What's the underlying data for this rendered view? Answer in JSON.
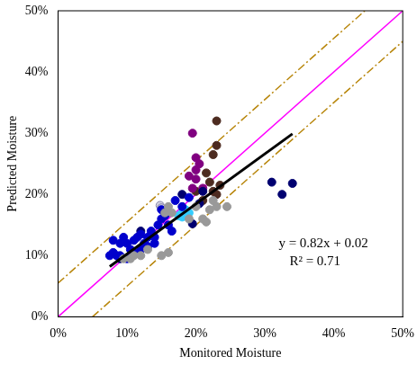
{
  "chart_data": {
    "type": "scatter",
    "x_label": "Monitored Moisture",
    "y_label": "Predicted Moisture",
    "xlim": [
      0,
      50
    ],
    "ylim": [
      0,
      50
    ],
    "xticks": [
      {
        "value": 0,
        "label": "0%"
      },
      {
        "value": 10,
        "label": "10%"
      },
      {
        "value": 20,
        "label": "20%"
      },
      {
        "value": 30,
        "label": "30%"
      },
      {
        "value": 40,
        "label": "40%"
      },
      {
        "value": 50,
        "label": "50%"
      }
    ],
    "yticks": [
      {
        "value": 0,
        "label": "0%"
      },
      {
        "value": 10,
        "label": "10%"
      },
      {
        "value": 20,
        "label": "20%"
      },
      {
        "value": 30,
        "label": "30%"
      },
      {
        "value": 40,
        "label": "40%"
      },
      {
        "value": 50,
        "label": "50%"
      }
    ],
    "grid": false,
    "annotations": [
      "y = 0.82x + 0.02",
      "R² = 0.71"
    ],
    "series": [
      {
        "type": "line",
        "color": "#ff00ff",
        "line_style": "solid",
        "x": [
          0,
          50
        ],
        "values": [
          0,
          50
        ]
      },
      {
        "type": "line",
        "color": "#b8860b",
        "line_style": "dashdot",
        "x": [
          0,
          44.5
        ],
        "values": [
          5.5,
          50
        ]
      },
      {
        "type": "line",
        "color": "#b8860b",
        "line_style": "dashdot",
        "x": [
          5,
          50
        ],
        "values": [
          0,
          45
        ]
      },
      {
        "type": "scatter",
        "marker": "circle",
        "color": "#999999",
        "x": [
          9.5,
          10.5,
          11,
          12,
          13,
          15.5,
          16,
          16.5,
          19,
          20,
          21,
          21.5,
          22,
          22.5,
          23,
          24.5,
          16,
          15
        ],
        "values": [
          9.5,
          9.5,
          10,
          10,
          11,
          17,
          18,
          17,
          16,
          18,
          16,
          15.5,
          17.5,
          19,
          18,
          18,
          10.5,
          10
        ]
      },
      {
        "type": "scatter",
        "marker": "circle",
        "color": "#0000cc",
        "x": [
          7.5,
          8,
          8.5,
          9,
          9,
          9.5,
          10,
          10.5,
          11,
          11.5,
          12,
          12,
          12.5,
          13,
          13.5,
          14,
          14.5,
          15,
          15,
          15.5,
          16,
          17,
          18,
          19,
          10,
          11,
          13,
          14,
          8,
          16.5
        ],
        "values": [
          10,
          10.5,
          10,
          12,
          10,
          13,
          12,
          11,
          12.5,
          13,
          11,
          13.5,
          12,
          13,
          14,
          13,
          15,
          16,
          17.5,
          16.5,
          15,
          19,
          18,
          19.5,
          9.5,
          10.5,
          11.5,
          12,
          12.5,
          14
        ]
      },
      {
        "type": "scatter",
        "marker": "circle",
        "color": "#000070",
        "x": [
          31,
          32.5,
          34,
          18,
          21,
          20.5,
          19.5,
          12,
          9
        ],
        "values": [
          22,
          20,
          21.8,
          20,
          20.5,
          18.5,
          15.2,
          14,
          9.5
        ]
      },
      {
        "type": "scatter",
        "marker": "circle",
        "color": "#33ccff",
        "x": [
          17.5,
          18,
          18.5,
          19,
          18
        ],
        "values": [
          16.5,
          17,
          17.5,
          17,
          16.3
        ]
      },
      {
        "type": "scatter",
        "marker": "circle",
        "color": "#800080",
        "x": [
          19.5,
          20,
          20,
          20,
          19,
          21,
          19.5,
          20.5
        ],
        "values": [
          30,
          26,
          24,
          22.5,
          23,
          21,
          21,
          25
        ]
      },
      {
        "type": "scatter",
        "marker": "circle",
        "color": "#4d2b20",
        "x": [
          23,
          23,
          22.5,
          21.5,
          22,
          23,
          22.5,
          21,
          23.5,
          20
        ],
        "values": [
          32,
          28,
          26.5,
          23.5,
          22,
          20,
          20.5,
          19,
          21.5,
          20.5
        ]
      },
      {
        "type": "scatter",
        "marker": "circle",
        "color": "#d0d0e0",
        "x": [
          14.8,
          15
        ],
        "values": [
          18.2,
          17.8
        ]
      },
      {
        "type": "line",
        "color": "#000000",
        "line_style": "solid",
        "x": [
          7.5,
          34
        ],
        "values": [
          8.2,
          29.9
        ]
      }
    ]
  }
}
